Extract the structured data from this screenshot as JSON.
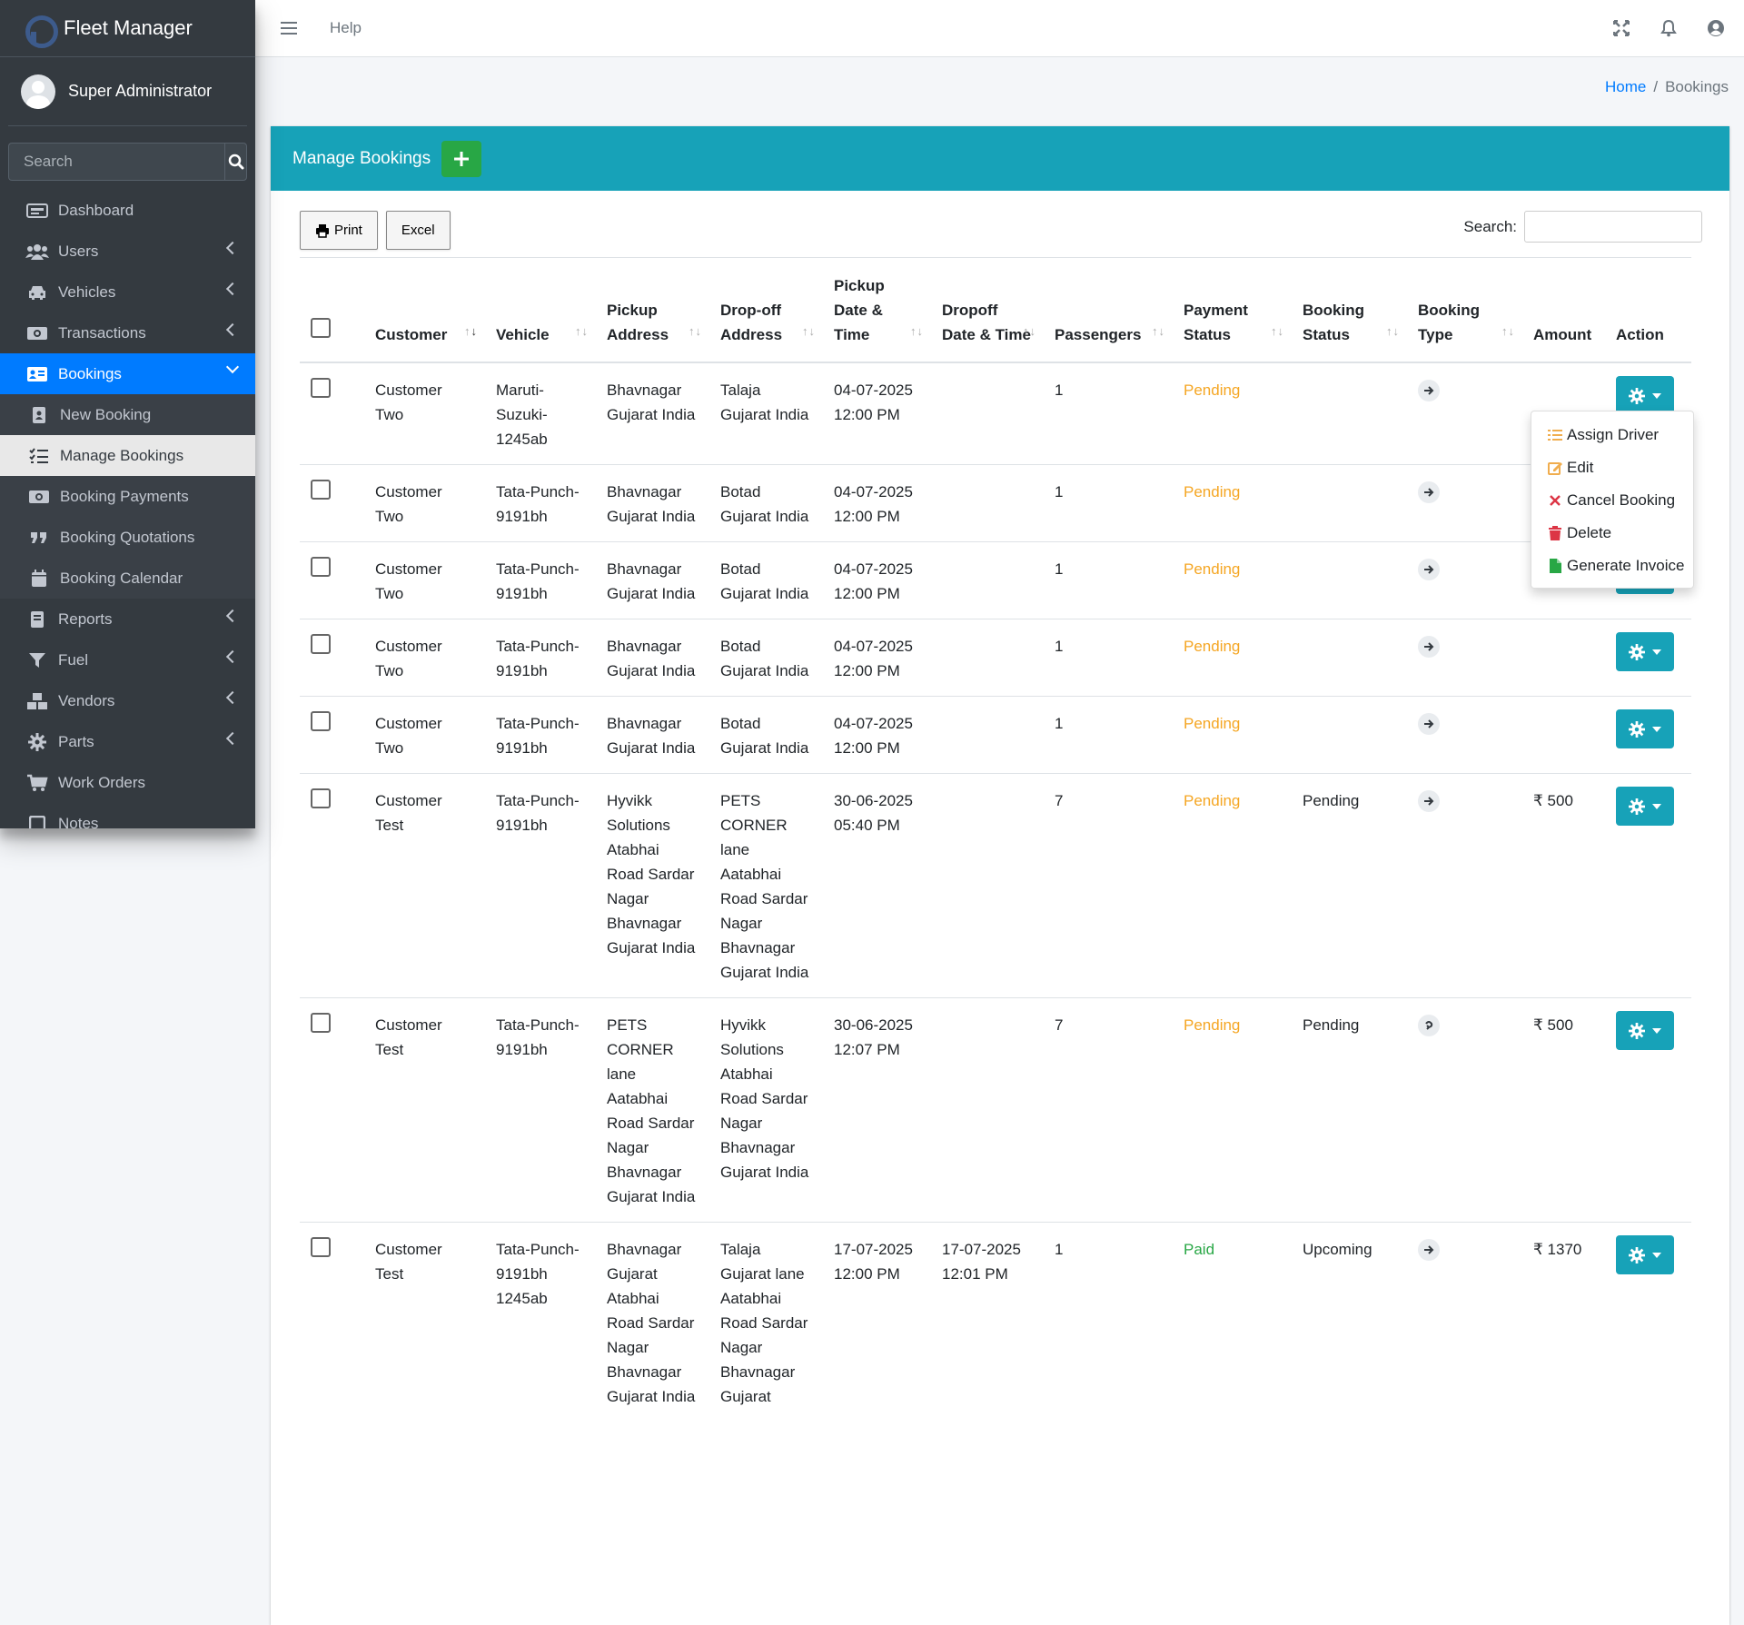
{
  "app": {
    "title": "Fleet Manager",
    "user": "Super Administrator"
  },
  "sidebar": {
    "search_placeholder": "Search",
    "items": [
      {
        "label": "Dashboard",
        "icon": "dashboard-icon"
      },
      {
        "label": "Users",
        "icon": "users-icon"
      },
      {
        "label": "Vehicles",
        "icon": "car-icon"
      },
      {
        "label": "Transactions",
        "icon": "money-icon"
      },
      {
        "label": "Bookings",
        "icon": "address-card-icon"
      },
      {
        "label": "Reports",
        "icon": "book-icon"
      },
      {
        "label": "Fuel",
        "icon": "filter-icon"
      },
      {
        "label": "Vendors",
        "icon": "cubes-icon"
      },
      {
        "label": "Parts",
        "icon": "gear-icon"
      },
      {
        "label": "Work Orders",
        "icon": "cart-icon"
      },
      {
        "label": "Notes",
        "icon": "note-icon"
      }
    ],
    "bookings_sub": [
      {
        "label": "New Booking",
        "icon": "address-book-icon"
      },
      {
        "label": "Manage Bookings",
        "icon": "list-check-icon"
      },
      {
        "label": "Booking Payments",
        "icon": "money-icon"
      },
      {
        "label": "Booking Quotations",
        "icon": "quote-icon"
      },
      {
        "label": "Booking Calendar",
        "icon": "calendar-icon"
      }
    ]
  },
  "navbar": {
    "help": "Help"
  },
  "breadcrumb": {
    "home": "Home",
    "current": "Bookings"
  },
  "card": {
    "title": "Manage Bookings",
    "print": "Print",
    "excel": "Excel",
    "search_label": "Search:"
  },
  "table": {
    "headers": {
      "customer": "Customer",
      "vehicle": "Vehicle",
      "pickup": "Pickup Address",
      "dropoff": "Drop-off Address",
      "pickup_time": "Pickup Date & Time",
      "dropoff_time": "Dropoff Date & Time",
      "passengers": "Passengers",
      "payment": "Payment Status",
      "booking_status": "Booking Status",
      "booking_type": "Booking Type",
      "amount": "Amount",
      "action": "Action"
    },
    "rows": [
      {
        "customer": "Customer Two",
        "vehicle": "Maruti-Suzuki-1245ab",
        "pickup": "Bhavnagar Gujarat India",
        "dropoff": "Talaja Gujarat India",
        "pickup_time": "04-07-2025 12:00 PM",
        "dropoff_time": "",
        "passengers": "1",
        "payment": "Pending",
        "status": "",
        "type": "arrow-right-icon",
        "amount": ""
      },
      {
        "customer": "Customer Two",
        "vehicle": "Tata-Punch-9191bh",
        "pickup": "Bhavnagar Gujarat India",
        "dropoff": "Botad Gujarat India",
        "pickup_time": "04-07-2025 12:00 PM",
        "dropoff_time": "",
        "passengers": "1",
        "payment": "Pending",
        "status": "",
        "type": "arrow-right-icon",
        "amount": ""
      },
      {
        "customer": "Customer Two",
        "vehicle": "Tata-Punch-9191bh",
        "pickup": "Bhavnagar Gujarat India",
        "dropoff": "Botad Gujarat India",
        "pickup_time": "04-07-2025 12:00 PM",
        "dropoff_time": "",
        "passengers": "1",
        "payment": "Pending",
        "status": "",
        "type": "arrow-right-icon",
        "amount": ""
      },
      {
        "customer": "Customer Two",
        "vehicle": "Tata-Punch-9191bh",
        "pickup": "Bhavnagar Gujarat India",
        "dropoff": "Botad Gujarat India",
        "pickup_time": "04-07-2025 12:00 PM",
        "dropoff_time": "",
        "passengers": "1",
        "payment": "Pending",
        "status": "",
        "type": "arrow-right-icon",
        "amount": ""
      },
      {
        "customer": "Customer Two",
        "vehicle": "Tata-Punch-9191bh",
        "pickup": "Bhavnagar Gujarat India",
        "dropoff": "Botad Gujarat India",
        "pickup_time": "04-07-2025 12:00 PM",
        "dropoff_time": "",
        "passengers": "1",
        "payment": "Pending",
        "status": "",
        "type": "arrow-right-icon",
        "amount": ""
      },
      {
        "customer": "Customer Test",
        "vehicle": "Tata-Punch-9191bh",
        "pickup": "Hyvikk Solutions Atabhai Road Sardar Nagar Bhavnagar Gujarat India",
        "dropoff": "PETS CORNER lane Aatabhai Road Sardar Nagar Bhavnagar Gujarat India",
        "pickup_time": "30-06-2025 05:40 PM",
        "dropoff_time": "",
        "passengers": "7",
        "payment": "Pending",
        "status": "Pending",
        "type": "arrow-right-icon",
        "amount": "₹ 500"
      },
      {
        "customer": "Customer Test",
        "vehicle": "Tata-Punch-9191bh",
        "pickup": "PETS CORNER lane Aatabhai Road Sardar Nagar Bhavnagar Gujarat India",
        "dropoff": "Hyvikk Solutions Atabhai Road Sardar Nagar Bhavnagar Gujarat India",
        "pickup_time": "30-06-2025 12:07 PM",
        "dropoff_time": "",
        "passengers": "7",
        "payment": "Pending",
        "status": "Pending",
        "type": "round-trip-icon",
        "amount": "₹ 500"
      },
      {
        "customer": "Customer Test",
        "vehicle": "Tata-Punch-9191bh 1245ab",
        "pickup": "Bhavnagar Gujarat Atabhai Road Sardar Nagar Bhavnagar Gujarat India",
        "dropoff": "Talaja Gujarat lane Aatabhai Road Sardar Nagar Bhavnagar Gujarat",
        "pickup_time": "17-07-2025 12:00 PM",
        "dropoff_time": "17-07-2025 12:01 PM",
        "passengers": "1",
        "payment": "Paid",
        "status": "Upcoming",
        "type": "arrow-right-icon",
        "amount": "₹ 1370"
      }
    ]
  },
  "dropdown": {
    "items": [
      {
        "label": "Assign Driver",
        "icon": "list-icon",
        "color": "#f0ad4e"
      },
      {
        "label": "Edit",
        "icon": "edit-icon",
        "color": "#f0ad4e"
      },
      {
        "label": "Cancel Booking",
        "icon": "times-icon",
        "color": "#dc3545"
      },
      {
        "label": "Delete",
        "icon": "trash-icon",
        "color": "#dc3545"
      },
      {
        "label": "Generate Invoice",
        "icon": "file-icon",
        "color": "#28a745"
      }
    ]
  },
  "colors": {
    "accent": "#17a2b8",
    "primary": "#007bff",
    "sidebar": "#343a40",
    "success": "#28a745",
    "warning": "#f5a623"
  }
}
